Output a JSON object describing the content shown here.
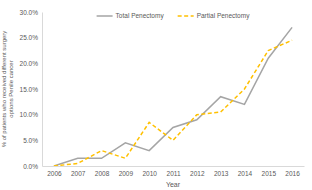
{
  "chart_data": {
    "type": "line",
    "x_label": "Year",
    "y_label": "% of patients who received different surgery options Penile cancer",
    "categories": [
      "2006",
      "2007",
      "2008",
      "2009",
      "2010",
      "2011",
      "2012",
      "2013",
      "2014",
      "2015",
      "2016"
    ],
    "series": [
      {
        "name": "Total Penectomy",
        "color": "#a5a5a5",
        "line_style": "solid",
        "values": [
          0,
          1.5,
          1.5,
          4.5,
          3,
          7.5,
          9,
          13.5,
          12,
          21,
          27
        ]
      },
      {
        "name": "Partial Penectomy",
        "color": "#ffc000",
        "line_style": "dashed",
        "values": [
          0,
          0.5,
          3,
          1.5,
          8.5,
          5,
          10,
          10.5,
          15,
          22.5,
          24.5
        ]
      }
    ],
    "ylim": [
      0,
      30
    ],
    "yticks": [
      {
        "value": 0,
        "label": "0.0%"
      },
      {
        "value": 5,
        "label": "5.0%"
      },
      {
        "value": 10,
        "label": "10.0%"
      },
      {
        "value": 15,
        "label": "15.0%"
      },
      {
        "value": 20,
        "label": "20.0%"
      },
      {
        "value": 25,
        "label": "25.0%"
      },
      {
        "value": 30,
        "label": "30.0%"
      }
    ],
    "grid": false,
    "legend": "top"
  }
}
